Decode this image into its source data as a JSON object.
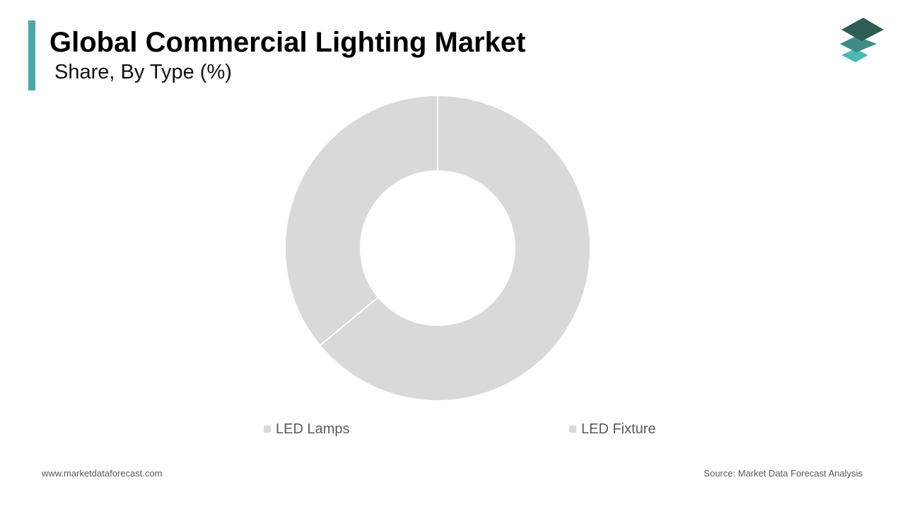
{
  "colors": {
    "accent": "#4BA8A8",
    "slice": "#D9D9D9",
    "logo_dark": "#2F5D56",
    "logo_mid": "#3E8C85",
    "logo_light": "#4DB8B2"
  },
  "header": {
    "title": "Global Commercial Lighting Market",
    "subtitle": "Share, By Type (%)"
  },
  "logo": {
    "icon": "stacked-layers-icon"
  },
  "chart_data": {
    "type": "pie",
    "donut": true,
    "categories": [
      "LED Lamps",
      "LED Fixture"
    ],
    "values": [
      36,
      64
    ],
    "colors": [
      "#D9D9D9",
      "#D9D9D9"
    ],
    "legend": "bottom"
  },
  "legend": {
    "items": [
      {
        "label": "LED Lamps"
      },
      {
        "label": "LED Fixture"
      }
    ]
  },
  "footer": {
    "website": "www.marketdataforecast.com",
    "source": "Source: Market Data Forecast Analysis"
  }
}
